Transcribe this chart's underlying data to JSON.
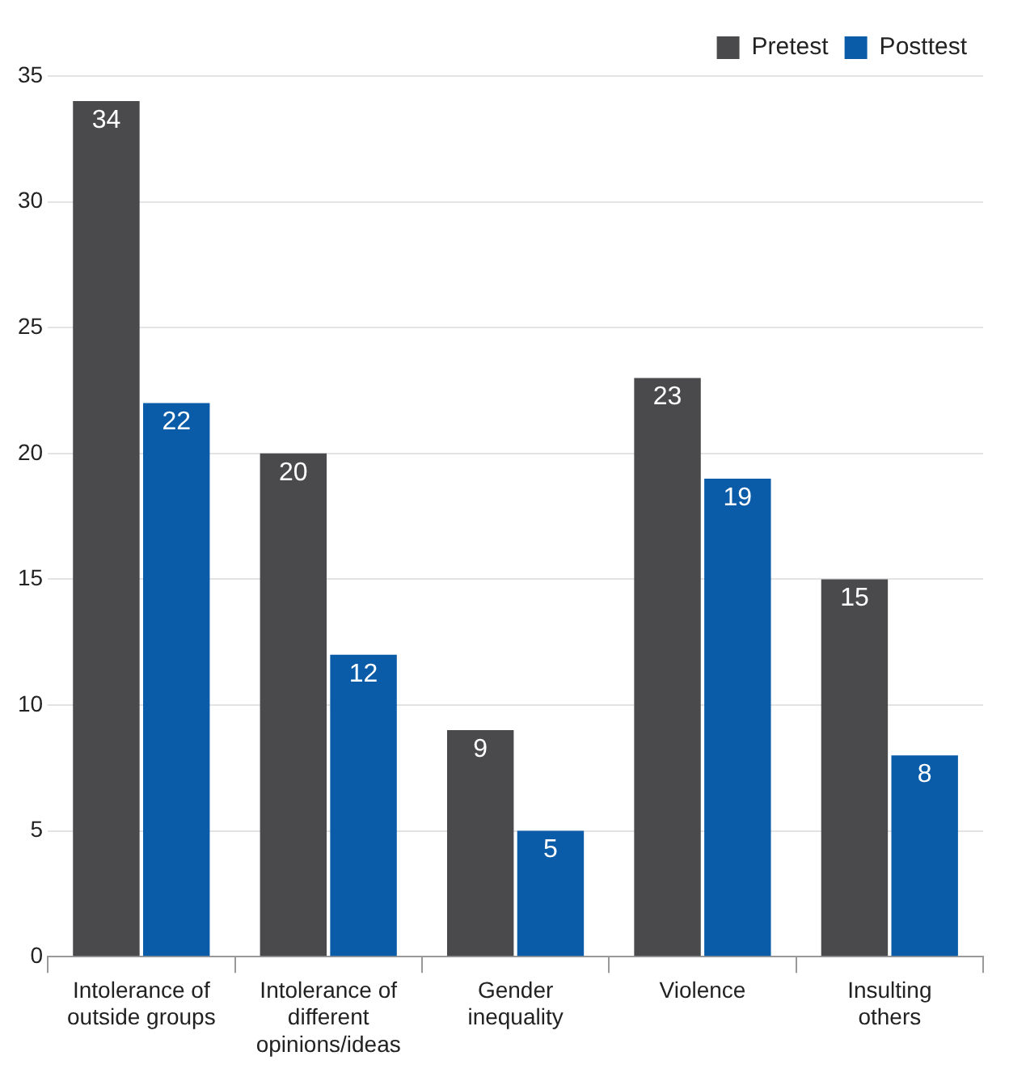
{
  "chart_data": {
    "type": "bar",
    "categories": [
      "Intolerance of outside groups",
      "Intolerance of different opinions/ideas",
      "Gender inequality",
      "Violence",
      "Insulting others"
    ],
    "series": [
      {
        "name": "Pretest",
        "color": "#4a4a4c",
        "values": [
          34,
          20,
          9,
          23,
          15
        ]
      },
      {
        "name": "Posttest",
        "color": "#0a5ca8",
        "values": [
          22,
          12,
          5,
          19,
          8
        ]
      }
    ],
    "ylim": [
      0,
      35
    ],
    "yticks": [
      0,
      5,
      10,
      15,
      20,
      25,
      30,
      35
    ],
    "grid": "y",
    "legend": "top right",
    "data_labels": true
  }
}
